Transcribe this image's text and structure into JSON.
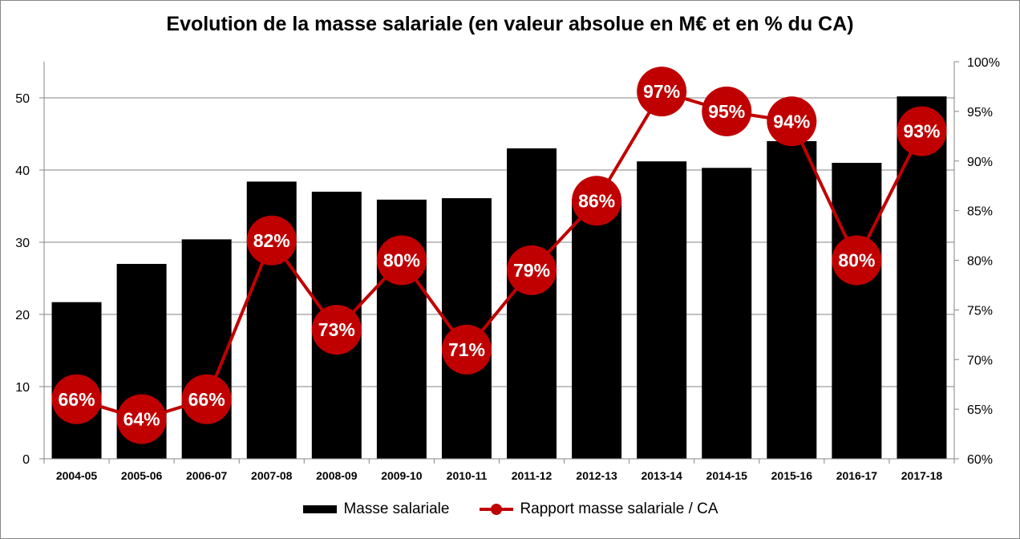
{
  "chart_data": {
    "type": "bar+line",
    "title": "Evolution de la masse salariale (en valeur absolue en M€ et en % du CA)",
    "categories": [
      "2004-05",
      "2005-06",
      "2006-07",
      "2007-08",
      "2008-09",
      "2009-10",
      "2010-11",
      "2011-12",
      "2012-13",
      "2013-14",
      "2014-15",
      "2015-16",
      "2016-17",
      "2017-18"
    ],
    "series": [
      {
        "name": "Masse salariale",
        "type": "bar",
        "axis": "left",
        "color": "#000000",
        "values": [
          21.7,
          27.0,
          30.4,
          38.4,
          37.0,
          35.9,
          36.1,
          43.0,
          36.0,
          41.2,
          40.3,
          44.0,
          41.0,
          50.2
        ]
      },
      {
        "name": "Rapport masse salariale / CA",
        "type": "line",
        "axis": "right",
        "color": "#C00000",
        "values": [
          66,
          64,
          66,
          82,
          73,
          80,
          71,
          79,
          86,
          97,
          95,
          94,
          80,
          93
        ],
        "labels": [
          "66%",
          "64%",
          "66%",
          "82%",
          "73%",
          "80%",
          "71%",
          "79%",
          "86%",
          "97%",
          "95%",
          "94%",
          "80%",
          "93%"
        ]
      }
    ],
    "y_left": {
      "min": 0,
      "max": 55,
      "ticks": [
        "0",
        "10",
        "20",
        "30",
        "40",
        "50"
      ],
      "tick_values": [
        0,
        10,
        20,
        30,
        40,
        50
      ]
    },
    "y_right": {
      "min": 60,
      "max": 100,
      "ticks": [
        "60%",
        "65%",
        "70%",
        "75%",
        "80%",
        "85%",
        "90%",
        "95%",
        "100%"
      ],
      "tick_values": [
        60,
        65,
        70,
        75,
        80,
        85,
        90,
        95,
        100
      ]
    },
    "grid": true,
    "legend_position": "bottom"
  }
}
